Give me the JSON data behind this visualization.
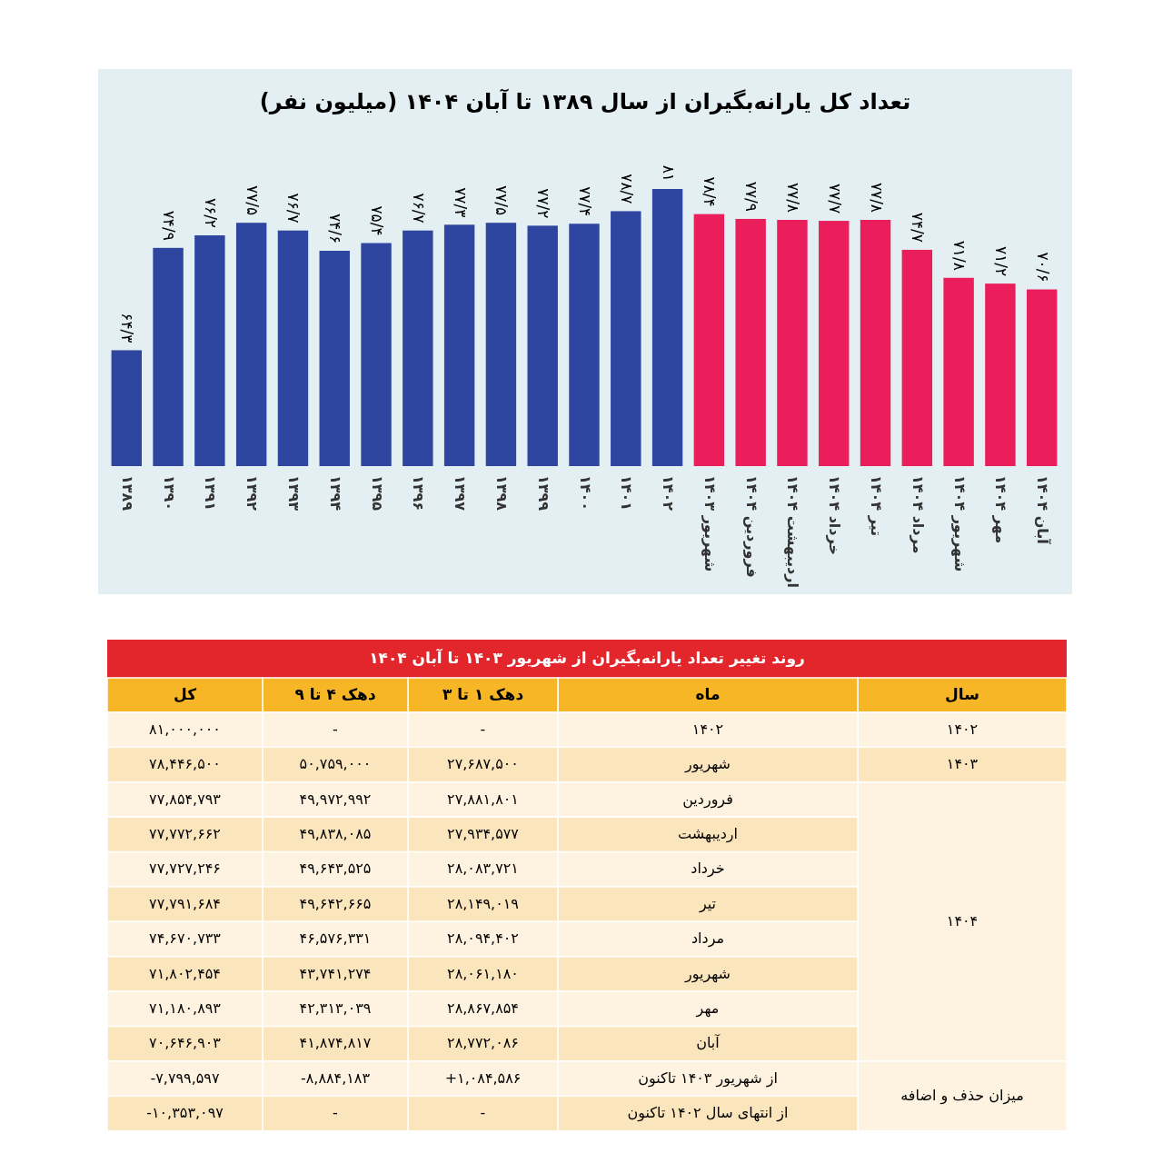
{
  "chart_data": [
    {
      "type": "bar",
      "title": "تعداد کل یارانه‌بگیران از سال ۱۳۸۹ تا آبان ۱۴۰۴ (میلیون نفر)",
      "categories": [
        "۱۳۸۹",
        "۱۳۹۰",
        "۱۳۹۱",
        "۱۳۹۲",
        "۱۳۹۳",
        "۱۳۹۴",
        "۱۳۹۵",
        "۱۳۹۶",
        "۱۳۹۷",
        "۱۳۹۸",
        "۱۳۹۹",
        "۱۴۰۰",
        "۱۴۰۱",
        "۱۴۰۲",
        "شهریور ۱۴۰۳",
        "فروردین ۱۴۰۴",
        "اردیبهشت ۱۴۰۴",
        "خرداد ۱۴۰۴",
        "تیر ۱۴۰۴",
        "مرداد ۱۴۰۴",
        "شهریور ۱۴۰۴",
        "مهر ۱۴۰۴",
        "آبان ۱۴۰۴"
      ],
      "values": [
        64.3,
        74.9,
        76.2,
        77.5,
        76.7,
        74.6,
        75.4,
        76.7,
        77.3,
        77.5,
        77.2,
        77.4,
        78.7,
        81,
        78.4,
        77.9,
        77.8,
        77.7,
        77.8,
        74.7,
        71.8,
        71.2,
        70.6
      ],
      "value_labels": [
        "۶۴/۳",
        "۷۴/۹",
        "۷۶/۲",
        "۷۷/۵",
        "۷۶/۷",
        "۷۴/۶",
        "۷۵/۴",
        "۷۶/۷",
        "۷۷/۳",
        "۷۷/۵",
        "۷۷/۲",
        "۷۷/۴",
        "۷۸/۷",
        "۸۱",
        "۷۸/۴",
        "۷۷/۹",
        "۷۷/۸",
        "۷۷/۷",
        "۷۷/۸",
        "۷۴/۷",
        "۷۱/۸",
        "۷۱/۲",
        "۷۰/۶"
      ],
      "colors": [
        "#2e46a0",
        "#2e46a0",
        "#2e46a0",
        "#2e46a0",
        "#2e46a0",
        "#2e46a0",
        "#2e46a0",
        "#2e46a0",
        "#2e46a0",
        "#2e46a0",
        "#2e46a0",
        "#2e46a0",
        "#2e46a0",
        "#2e46a0",
        "#e91e5a",
        "#e91e5a",
        "#e91e5a",
        "#e91e5a",
        "#e91e5a",
        "#e91e5a",
        "#e91e5a",
        "#e91e5a",
        "#e91e5a"
      ],
      "ylim": [
        52.3,
        81
      ]
    },
    {
      "type": "other",
      "title": "روند تغییر تعداد یارانه‌بگیران از شهریور ۱۴۰۳ تا آبان ۱۴۰۴",
      "categories": [
        "سال",
        "ماه",
        "دهک ۱ تا ۳",
        "دهک ۴ تا ۹",
        "کل"
      ],
      "cell_labels": [
        [
          "۱۴۰۲",
          "۱۴۰۲",
          "-",
          "-",
          "۸۱,۰۰۰,۰۰۰"
        ],
        [
          "۱۴۰۳",
          "شهریور",
          "۲۷,۶۸۷,۵۰۰",
          "۵۰,۷۵۹,۰۰۰",
          "۷۸,۴۴۶,۵۰۰"
        ],
        [
          "۱۴۰۴",
          "فروردین",
          "۲۷,۸۸۱,۸۰۱",
          "۴۹,۹۷۲,۹۹۲",
          "۷۷,۸۵۴,۷۹۳"
        ],
        [
          null,
          "اردیبهشت",
          "۲۷,۹۳۴,۵۷۷",
          "۴۹,۸۳۸,۰۸۵",
          "۷۷,۷۷۲,۶۶۲"
        ],
        [
          null,
          "خرداد",
          "۲۸,۰۸۳,۷۲۱",
          "۴۹,۶۴۳,۵۲۵",
          "۷۷,۷۲۷,۲۴۶"
        ],
        [
          null,
          "تیر",
          "۲۸,۱۴۹,۰۱۹",
          "۴۹,۶۴۲,۶۶۵",
          "۷۷,۷۹۱,۶۸۴"
        ],
        [
          null,
          "مرداد",
          "۲۸,۰۹۴,۴۰۲",
          "۴۶,۵۷۶,۳۳۱",
          "۷۴,۶۷۰,۷۳۳"
        ],
        [
          null,
          "شهریور",
          "۲۸,۰۶۱,۱۸۰",
          "۴۳,۷۴۱,۲۷۴",
          "۷۱,۸۰۲,۴۵۴"
        ],
        [
          null,
          "مهر",
          "۲۸,۸۶۷,۸۵۴",
          "۴۲,۳۱۳,۰۳۹",
          "۷۱,۱۸۰,۸۹۳"
        ],
        [
          null,
          "آبان",
          "۲۸,۷۷۲,۰۸۶",
          "۴۱,۸۷۴,۸۱۷",
          "۷۰,۶۴۶,۹۰۳"
        ],
        [
          "میزان حذف و اضافه",
          "از شهریور ۱۴۰۳ تاکنون",
          "+۱,۰۸۴,۵۸۶",
          "-۸,۸۸۴,۱۸۳",
          "-۷,۷۹۹,۵۹۷"
        ],
        [
          null,
          "از انتهای سال ۱۴۰۲ تاکنون",
          "-",
          "-",
          "-۱۰,۳۵۳,۰۹۷"
        ]
      ]
    }
  ]
}
